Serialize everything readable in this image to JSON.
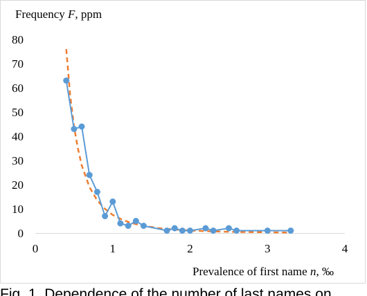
{
  "chart_data": {
    "type": "line",
    "title": "",
    "ylabel_prefix": "Frequency ",
    "ylabel_var": "F",
    "ylabel_suffix": ", ppm",
    "xlabel_prefix": "Prevalence of first name ",
    "xlabel_var": "n",
    "xlabel_suffix": ", ‰",
    "xlim": [
      0,
      4
    ],
    "ylim": [
      0,
      80
    ],
    "xticks": [
      0,
      1,
      2,
      3,
      4
    ],
    "yticks": [
      0,
      10,
      20,
      30,
      40,
      50,
      60,
      70,
      80
    ],
    "grid": false,
    "legend": "none",
    "series": [
      {
        "style": "solid-markers",
        "color": "#5b9bd5",
        "x": [
          0.4,
          0.5,
          0.6,
          0.7,
          0.8,
          0.9,
          1.0,
          1.1,
          1.2,
          1.3,
          1.4,
          1.7,
          1.8,
          1.9,
          2.0,
          2.2,
          2.3,
          2.5,
          2.6,
          3.0,
          3.3
        ],
        "y": [
          63,
          43,
          44,
          24,
          17,
          7,
          13,
          4,
          3,
          5,
          3,
          1,
          2,
          1,
          1,
          2,
          1,
          2,
          1,
          1,
          1
        ]
      },
      {
        "style": "dashed-fit",
        "color": "#ed7d31",
        "x": [
          0.4,
          0.45,
          0.5,
          0.55,
          0.6,
          0.7,
          0.8,
          0.9,
          1.0,
          1.1,
          1.2,
          1.3,
          1.4,
          1.6,
          1.8,
          2.0,
          2.3,
          2.6,
          3.0,
          3.3
        ],
        "y": [
          76,
          57,
          44,
          35,
          28,
          19,
          13.5,
          10,
          7.5,
          5.9,
          4.6,
          3.7,
          3.0,
          2.0,
          1.45,
          1.05,
          0.7,
          0.45,
          0.3,
          0.2
        ]
      }
    ]
  },
  "caption": "Fig. 1. Dependence of the number of last names on"
}
